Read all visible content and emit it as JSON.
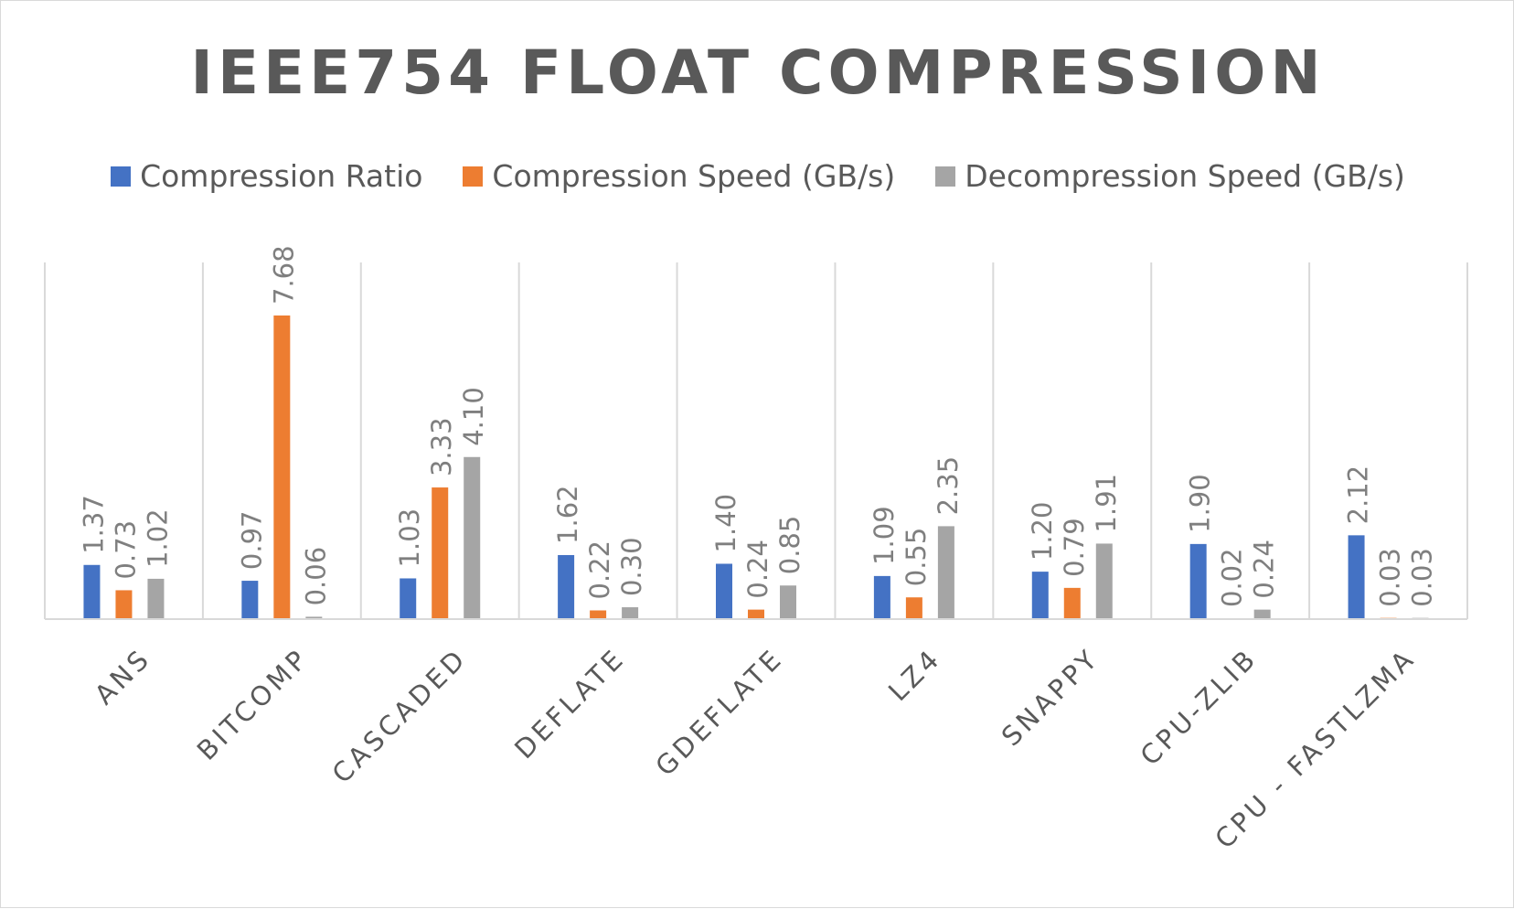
{
  "chart_data": {
    "type": "bar",
    "title": "IEEE754 FLOAT COMPRESSION",
    "categories": [
      "ANS",
      "BITCOMP",
      "CASCADED",
      "DEFLATE",
      "GDEFLATE",
      "LZ4",
      "SNAPPY",
      "CPU-ZLIB",
      "CPU - FASTLZMA"
    ],
    "series": [
      {
        "name": "Compression Ratio",
        "color": "#4472C4",
        "values": [
          1.37,
          0.97,
          1.03,
          1.62,
          1.4,
          1.09,
          1.2,
          1.9,
          2.12
        ]
      },
      {
        "name": "Compression Speed (GB/s)",
        "color": "#ED7D31",
        "values": [
          0.73,
          7.68,
          3.33,
          0.22,
          0.24,
          0.55,
          0.79,
          0.02,
          0.03
        ]
      },
      {
        "name": "Decompression Speed (GB/s)",
        "color": "#A5A5A5",
        "values": [
          1.02,
          0.06,
          4.1,
          0.3,
          0.85,
          2.35,
          1.91,
          0.24,
          0.03
        ]
      }
    ],
    "data_labels": [
      [
        "1.37",
        "0.97",
        "1.03",
        "1.62",
        "1.40",
        "1.09",
        "1.20",
        "1.90",
        "2.12"
      ],
      [
        "0.73",
        "7.68",
        "3.33",
        "0.22",
        "0.24",
        "0.55",
        "0.79",
        "0.02",
        "0.03"
      ],
      [
        "1.02",
        "0.06",
        "4.10",
        "0.30",
        "0.85",
        "2.35",
        "1.91",
        "0.24",
        "0.03"
      ]
    ],
    "xlabel": "",
    "ylabel": "",
    "ylim": [
      0,
      9
    ],
    "grid": "vertical",
    "legend_position": "top"
  }
}
